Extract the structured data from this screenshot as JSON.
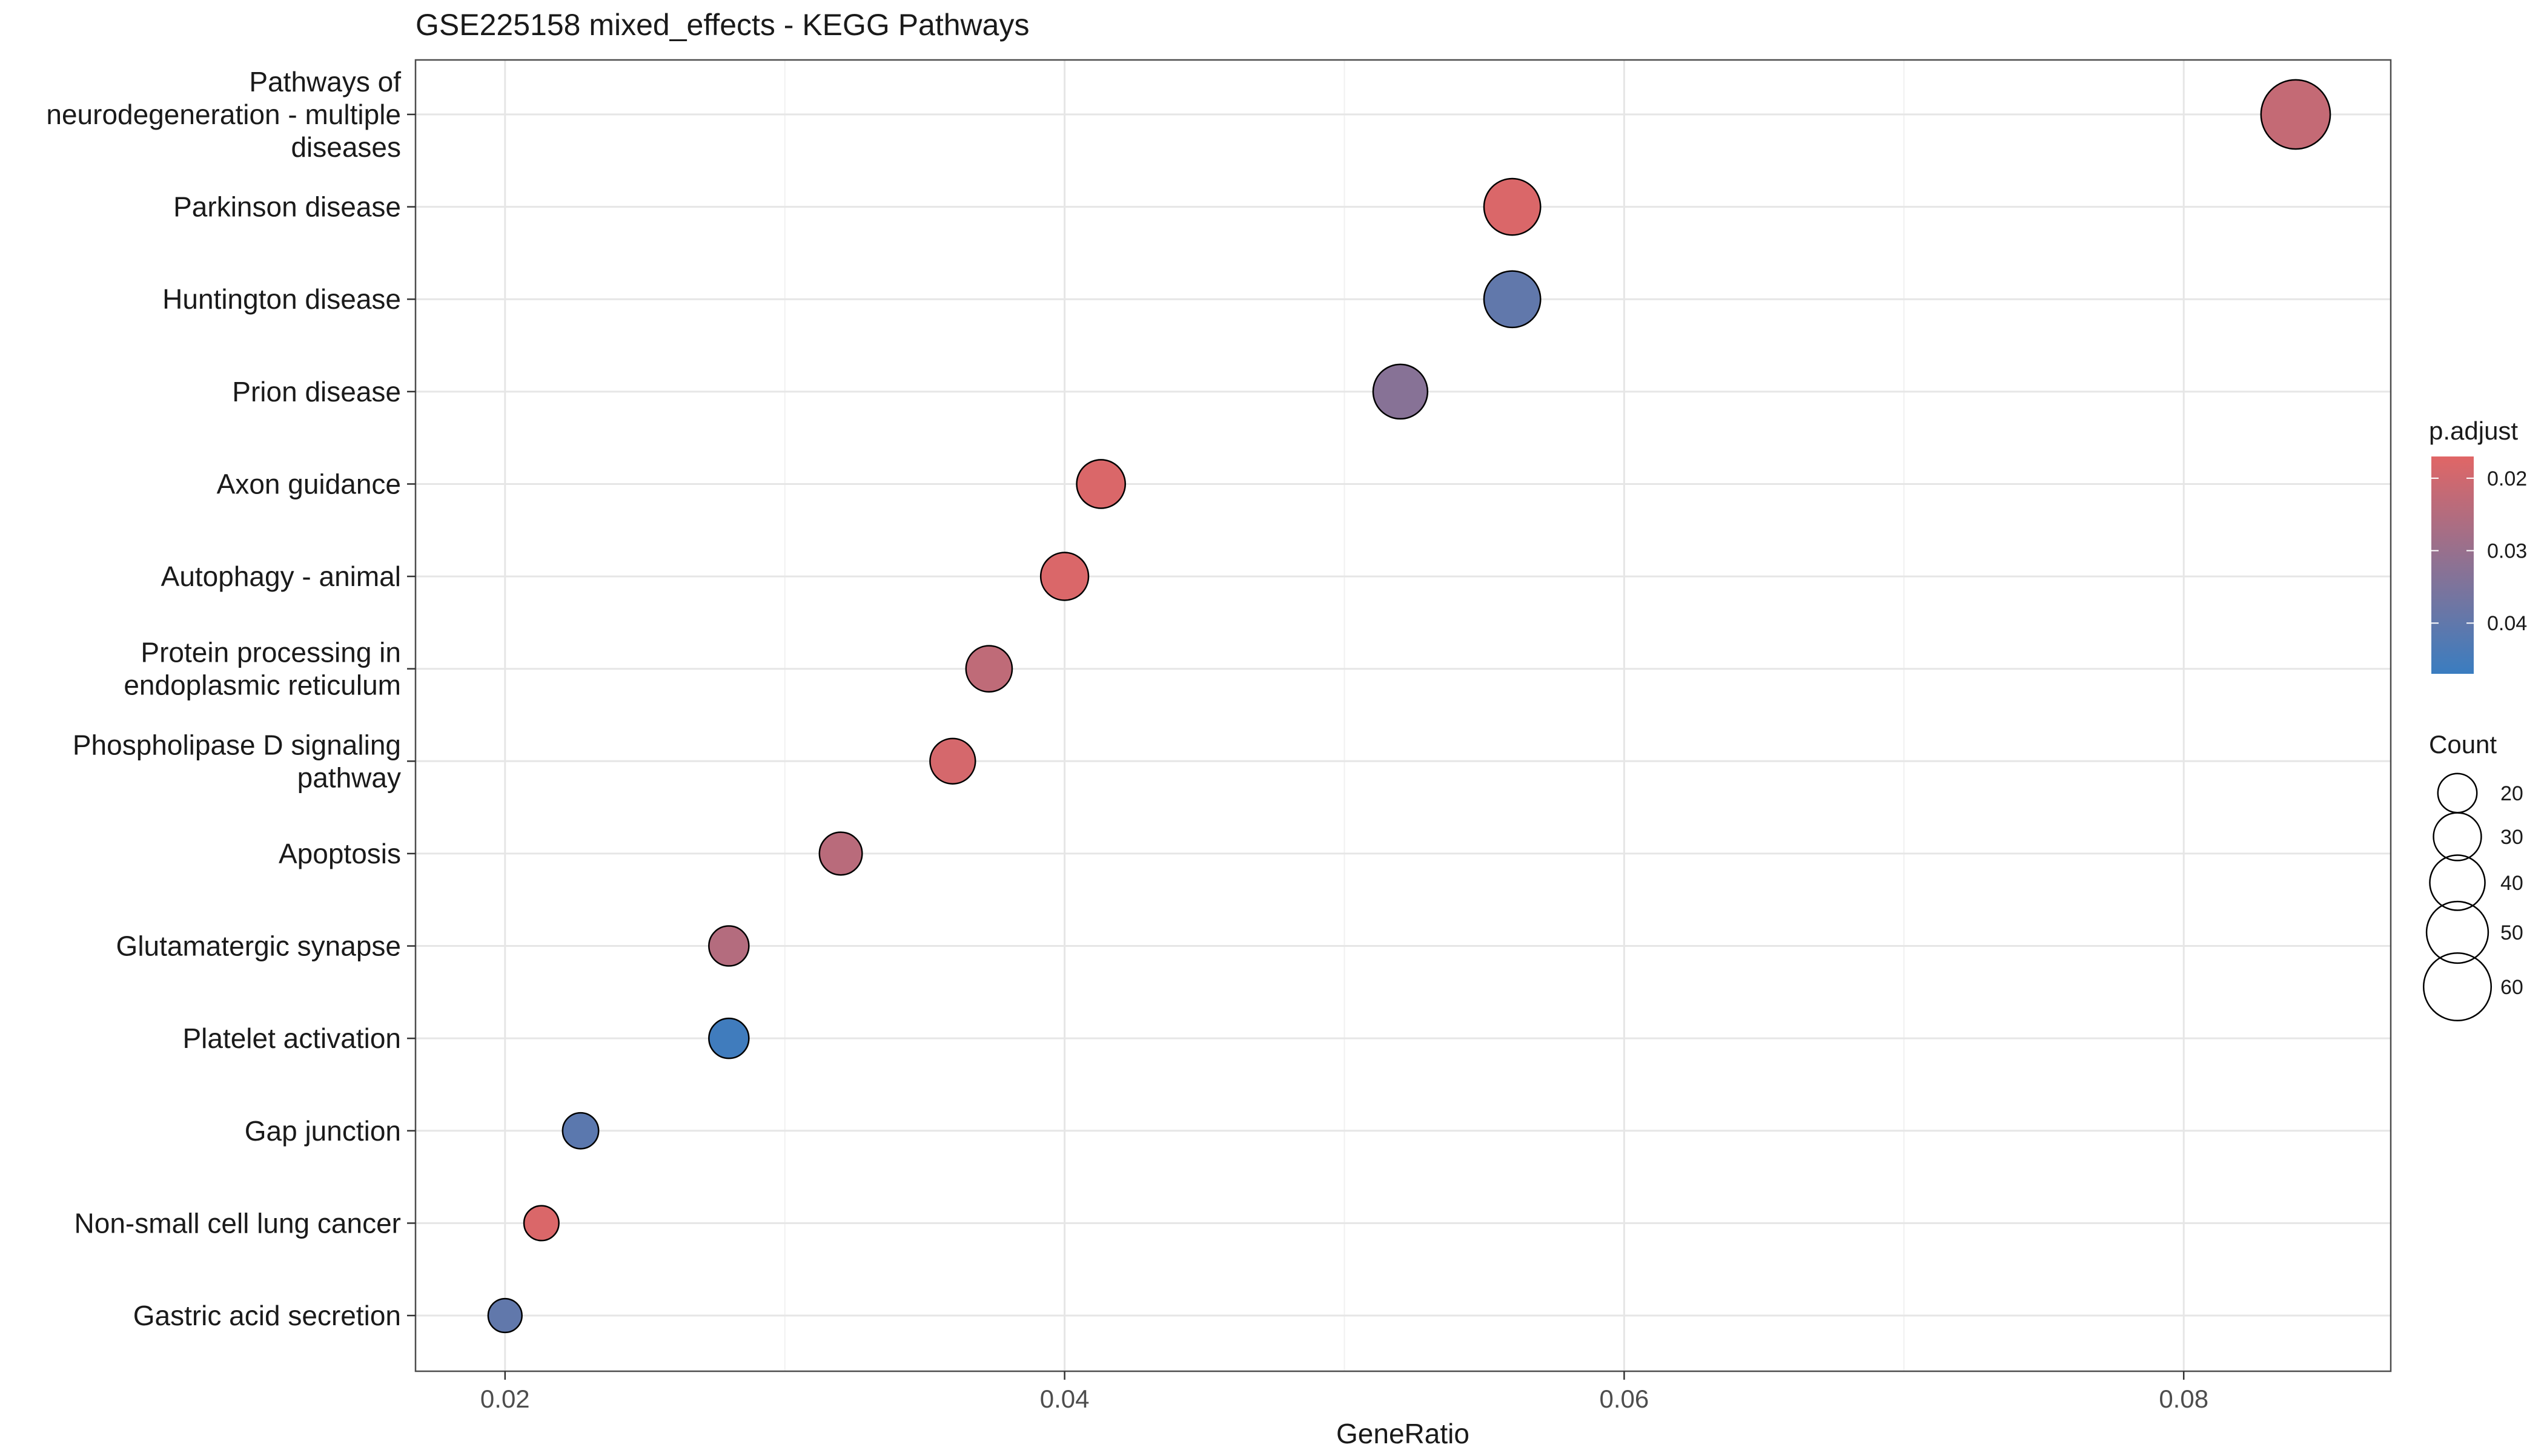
{
  "chart_data": {
    "type": "scatter",
    "title": "GSE225158 mixed_effects - KEGG Pathways",
    "xlabel": "GeneRatio",
    "ylabel": "",
    "xlim": [
      0.0168,
      0.0874
    ],
    "x_ticks": [
      "0.02",
      "0.04",
      "0.06",
      "0.08"
    ],
    "x_tick_values": [
      0.02,
      0.04,
      0.06,
      0.08
    ],
    "grid": true,
    "categories": [
      "Pathways of\nneurodegeneration - multiple\ndiseases",
      "Parkinson disease",
      "Huntington disease",
      "Prion disease",
      "Axon guidance",
      "Autophagy - animal",
      "Protein processing in\nendoplasmic reticulum",
      "Phospholipase D signaling\npathway",
      "Apoptosis",
      "Glutamatergic synapse",
      "Platelet activation",
      "Gap junction",
      "Non-small cell lung cancer",
      "Gastric acid secretion"
    ],
    "points": [
      {
        "x": 0.084,
        "count": 63,
        "p_adjust": 0.022
      },
      {
        "x": 0.056,
        "count": 42,
        "p_adjust": 0.018
      },
      {
        "x": 0.056,
        "count": 42,
        "p_adjust": 0.04
      },
      {
        "x": 0.052,
        "count": 39,
        "p_adjust": 0.033
      },
      {
        "x": 0.0413,
        "count": 31,
        "p_adjust": 0.018
      },
      {
        "x": 0.04,
        "count": 30,
        "p_adjust": 0.018
      },
      {
        "x": 0.0373,
        "count": 28,
        "p_adjust": 0.023
      },
      {
        "x": 0.036,
        "count": 27,
        "p_adjust": 0.019
      },
      {
        "x": 0.032,
        "count": 24,
        "p_adjust": 0.024
      },
      {
        "x": 0.028,
        "count": 21,
        "p_adjust": 0.025
      },
      {
        "x": 0.028,
        "count": 21,
        "p_adjust": 0.046
      },
      {
        "x": 0.0227,
        "count": 17,
        "p_adjust": 0.041
      },
      {
        "x": 0.0213,
        "count": 16,
        "p_adjust": 0.018
      },
      {
        "x": 0.02,
        "count": 15,
        "p_adjust": 0.04
      }
    ],
    "color_legend": {
      "title": "p.adjust",
      "range": [
        0.017,
        0.047
      ],
      "ticks": [
        "0.02",
        "0.03",
        "0.04"
      ],
      "tick_values": [
        0.02,
        0.03,
        0.04
      ],
      "low_color": "#E06666",
      "high_color": "#3A7DC0"
    },
    "size_legend": {
      "title": "Count",
      "labels": [
        "20",
        "30",
        "40",
        "50",
        "60"
      ],
      "values": [
        20,
        30,
        40,
        50,
        60
      ]
    },
    "legend_position": "right"
  }
}
